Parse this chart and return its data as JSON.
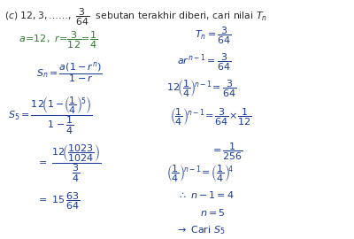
{
  "background_color": "#ffffff",
  "text_color_black": "#2a2a2a",
  "text_color_green": "#2d7a2d",
  "text_color_blue": "#1a3a9a",
  "fig_width": 4.0,
  "fig_height": 2.7,
  "dpi": 100
}
